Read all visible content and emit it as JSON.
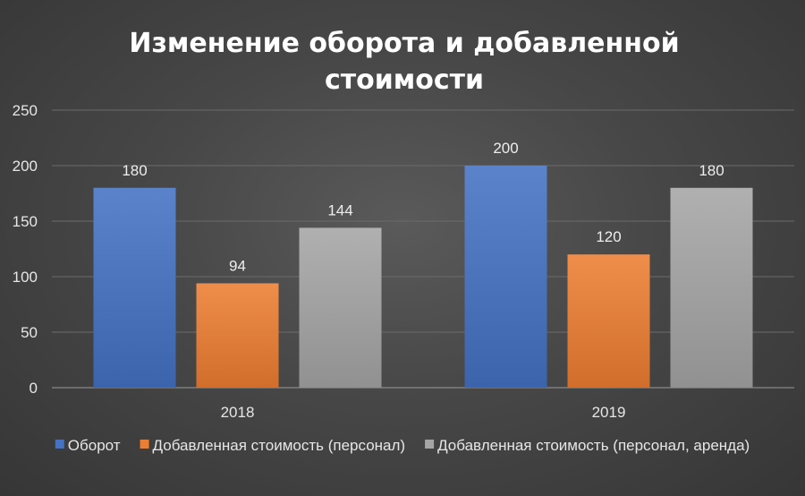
{
  "chart_data": {
    "type": "bar",
    "title": "Изменение оборота и добавленной стоимости",
    "title_lines": [
      "Изменение оборота и добавленной",
      "стоимости"
    ],
    "categories": [
      "2018",
      "2019"
    ],
    "series": [
      {
        "name": "Оборот",
        "values": [
          180,
          200
        ],
        "color": "#4472C4"
      },
      {
        "name": "Добавленная стоимость (персонал)",
        "values": [
          94,
          120
        ],
        "color": "#ED7D31"
      },
      {
        "name": "Добавленная стоимость (персонал, аренда)",
        "values": [
          144,
          180
        ],
        "color": "#A5A5A5"
      }
    ],
    "ylim": [
      0,
      250
    ],
    "yticks": [
      0,
      50,
      100,
      150,
      200,
      250
    ],
    "xlabel": "",
    "ylabel": "",
    "grid": true,
    "legend": "bottom"
  }
}
